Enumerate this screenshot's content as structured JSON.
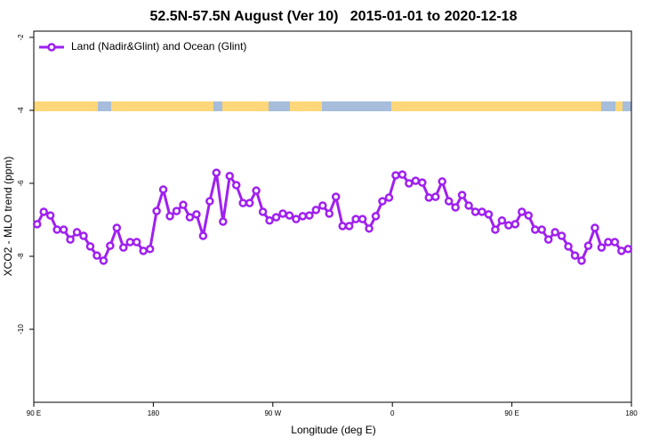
{
  "chart_data": {
    "type": "line",
    "title": "52.5N-57.5N August (Ver 10)   2015-01-01 to 2020-12-18",
    "xlabel": "Longitude (deg E)",
    "ylabel": "XCO2 - MLO trend (ppm)",
    "xlim": [
      90,
      540
    ],
    "xticks": [
      {
        "value": 90,
        "label": "90 E"
      },
      {
        "value": 180,
        "label": "180"
      },
      {
        "value": 270,
        "label": "90 W"
      },
      {
        "value": 360,
        "label": "0"
      },
      {
        "value": 450,
        "label": "90 E"
      },
      {
        "value": 540,
        "label": "180"
      }
    ],
    "ylim": [
      -12,
      -1.83
    ],
    "yticks": [
      -2,
      -4,
      -6,
      -8,
      -10
    ],
    "legend": "top-left",
    "x": [
      92.5,
      97.5,
      102.5,
      107.5,
      112.5,
      117.5,
      122.5,
      127.5,
      132.5,
      137.5,
      142.5,
      147.5,
      152.5,
      157.5,
      162.5,
      167.5,
      172.5,
      177.5,
      182.5,
      187.5,
      192.5,
      197.5,
      202.5,
      207.5,
      212.5,
      217.5,
      222.5,
      227.5,
      232.5,
      237.5,
      242.5,
      247.5,
      252.5,
      257.5,
      262.5,
      267.5,
      272.5,
      277.5,
      282.5,
      287.5,
      292.5,
      297.5,
      302.5,
      307.5,
      312.5,
      317.5,
      322.5,
      327.5,
      332.5,
      337.5,
      342.5,
      347.5,
      352.5,
      357.5,
      362.5,
      367.5,
      372.5,
      377.5,
      382.5,
      387.5,
      392.5,
      397.5,
      402.5,
      407.5,
      412.5,
      417.5,
      422.5,
      427.5,
      432.5,
      437.5,
      442.5,
      447.5,
      452.5,
      457.5,
      462.5,
      467.5,
      472.5,
      477.5,
      482.5,
      487.5,
      492.5,
      497.5,
      502.5,
      507.5,
      512.5,
      517.5,
      522.5,
      527.5,
      532.5,
      537.5
    ],
    "series": [
      {
        "name": "Land (Nadir&Glint) and Ocean (Glint)",
        "color": "#a020f0",
        "values": [
          -7.12,
          -6.78,
          -6.88,
          -7.27,
          -7.27,
          -7.54,
          -7.34,
          -7.44,
          -7.73,
          -7.98,
          -8.12,
          -7.71,
          -7.22,
          -7.76,
          -7.61,
          -7.61,
          -7.85,
          -7.8,
          -6.76,
          -6.17,
          -6.9,
          -6.76,
          -6.59,
          -6.93,
          -6.85,
          -7.44,
          -6.49,
          -5.71,
          -7.05,
          -5.8,
          -6.05,
          -6.54,
          -6.54,
          -6.2,
          -6.78,
          -7.02,
          -6.93,
          -6.83,
          -6.88,
          -6.98,
          -6.9,
          -6.88,
          -6.73,
          -6.61,
          -6.83,
          -6.37,
          -7.17,
          -7.17,
          -6.98,
          -6.98,
          -7.24,
          -6.9,
          -6.49,
          -6.39,
          -5.78,
          -5.76,
          -6.0,
          -5.93,
          -5.98,
          -6.39,
          -6.37,
          -5.95,
          -6.49,
          -6.66,
          -6.32,
          -6.61,
          -6.78,
          -6.78,
          -6.85,
          -7.27,
          -7.02,
          -7.15,
          -7.12,
          -6.78,
          -6.88,
          -7.27,
          -7.27,
          -7.54,
          -7.34,
          -7.44,
          -7.73,
          -7.98,
          -8.12,
          -7.71,
          -7.22,
          -7.76,
          -7.61,
          -7.61,
          -7.85,
          -7.8
        ]
      }
    ]
  }
}
